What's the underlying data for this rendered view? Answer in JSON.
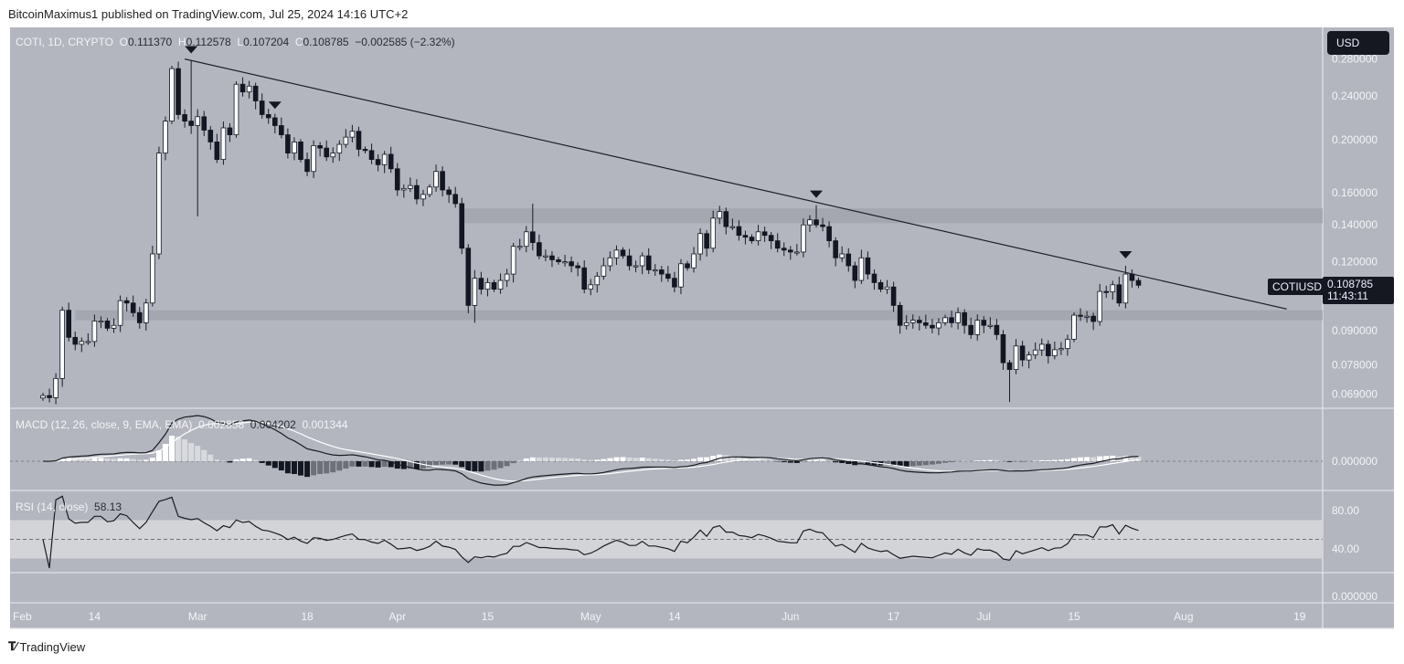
{
  "header": {
    "published": "BitcoinMaximus1 published on TradingView.com, Jul 25, 2024 14:16 UTC+2"
  },
  "legend": {
    "symbol": "COTI, 1D, CRYPTO",
    "o_label": "O",
    "o": "0.111370",
    "h_label": "H",
    "h": "0.112578",
    "l_label": "L",
    "l": "0.107204",
    "c_label": "C",
    "c": "0.108785",
    "change": "−0.002585 (−2.32%)"
  },
  "currency_button": "USD",
  "last_price": {
    "symbol": "COTIUSD",
    "price": "0.108785",
    "countdown": "11:43:11"
  },
  "macd_legend": {
    "title": "MACD (12, 26, close, 9, EMA, EMA)",
    "v1": "0.002858",
    "v2": "0.004202",
    "v3": "0.001344"
  },
  "rsi_legend": {
    "title": "RSI (14, close)",
    "value": "58.13"
  },
  "footer": {
    "brand": "TradingView"
  },
  "colors": {
    "background": "#b3b6bf",
    "up": "#ffffff",
    "down": "#131722",
    "zone": "#a2a5ae",
    "rsi_band": "#d3d4d8"
  },
  "chart_data": {
    "type": "candlestick",
    "symbol": "COTIUSD",
    "interval": "1D",
    "y_scale": "log",
    "first_date": "2024-02-06",
    "closes": [
      0.0686,
      0.068,
      0.0737,
      0.098,
      0.0875,
      0.085,
      0.086,
      0.086,
      0.0937,
      0.0937,
      0.0909,
      0.092,
      0.102,
      0.101,
      0.097,
      0.093,
      0.101,
      0.124,
      0.189,
      0.216,
      0.269,
      0.222,
      0.216,
      0.212,
      0.22,
      0.208,
      0.198,
      0.184,
      0.21,
      0.204,
      0.252,
      0.244,
      0.25,
      0.235,
      0.222,
      0.219,
      0.212,
      0.204,
      0.189,
      0.198,
      0.184,
      0.175,
      0.195,
      0.193,
      0.186,
      0.189,
      0.196,
      0.202,
      0.207,
      0.192,
      0.191,
      0.184,
      0.18,
      0.188,
      0.177,
      0.162,
      0.163,
      0.165,
      0.156,
      0.159,
      0.164,
      0.175,
      0.162,
      0.159,
      0.153,
      0.127,
      0.1,
      0.112,
      0.107,
      0.11,
      0.107,
      0.111,
      0.114,
      0.128,
      0.128,
      0.136,
      0.13,
      0.123,
      0.123,
      0.121,
      0.12,
      0.12,
      0.118,
      0.117,
      0.107,
      0.109,
      0.113,
      0.118,
      0.122,
      0.126,
      0.123,
      0.118,
      0.118,
      0.123,
      0.116,
      0.116,
      0.114,
      0.112,
      0.108,
      0.119,
      0.117,
      0.124,
      0.135,
      0.127,
      0.144,
      0.148,
      0.139,
      0.139,
      0.134,
      0.133,
      0.131,
      0.136,
      0.134,
      0.131,
      0.127,
      0.126,
      0.125,
      0.125,
      0.14,
      0.143,
      0.14,
      0.139,
      0.131,
      0.122,
      0.124,
      0.118,
      0.111,
      0.122,
      0.114,
      0.11,
      0.107,
      0.108,
      0.1,
      0.092,
      0.093,
      0.094,
      0.093,
      0.092,
      0.091,
      0.093,
      0.095,
      0.093,
      0.097,
      0.092,
      0.0885,
      0.094,
      0.092,
      0.092,
      0.0885,
      0.0787,
      0.0765,
      0.0844,
      0.0796,
      0.0813,
      0.083,
      0.085,
      0.081,
      0.0831,
      0.0835,
      0.0868,
      0.096,
      0.0956,
      0.0956,
      0.0935,
      0.106,
      0.1058,
      0.109,
      0.101,
      0.114,
      0.111,
      0.108785
    ],
    "notable_wicks": [
      {
        "date": "2024-02-29",
        "high": 0.278
      },
      {
        "date": "2024-03-01",
        "low": 0.145
      },
      {
        "date": "2024-04-13",
        "low": 0.093
      },
      {
        "date": "2024-04-22",
        "high": 0.153
      },
      {
        "date": "2024-06-05",
        "high": 0.152
      },
      {
        "date": "2024-07-05",
        "low": 0.0668
      },
      {
        "date": "2024-07-23",
        "high": 0.118
      }
    ],
    "price_ticks": [
      "0.280000",
      "0.240000",
      "0.200000",
      "0.160000",
      "0.140000",
      "0.120000",
      "0.090000",
      "0.078000",
      "0.069000"
    ],
    "time_ticks": [
      {
        "label": "Feb",
        "date": "2024-02-01"
      },
      {
        "label": "14",
        "date": "2024-02-14"
      },
      {
        "label": "Mar",
        "date": "2024-03-01"
      },
      {
        "label": "18",
        "date": "2024-03-18"
      },
      {
        "label": "Apr",
        "date": "2024-04-01"
      },
      {
        "label": "15",
        "date": "2024-04-15"
      },
      {
        "label": "May",
        "date": "2024-05-01"
      },
      {
        "label": "14",
        "date": "2024-05-14"
      },
      {
        "label": "Jun",
        "date": "2024-06-01"
      },
      {
        "label": "17",
        "date": "2024-06-17"
      },
      {
        "label": "Jul",
        "date": "2024-07-01"
      },
      {
        "label": "15",
        "date": "2024-07-15"
      },
      {
        "label": "Aug",
        "date": "2024-08-01"
      },
      {
        "label": "19",
        "date": "2024-08-19"
      }
    ],
    "zones": [
      {
        "name": "resistance",
        "from": 0.141,
        "to": 0.15,
        "start": "2024-04-11"
      },
      {
        "name": "support",
        "from": 0.094,
        "to": 0.098,
        "start": "2024-02-11"
      }
    ],
    "trendline": {
      "start": {
        "date": "2024-02-28",
        "price": 0.28
      },
      "end": {
        "date": "2024-08-17",
        "price": 0.0985
      }
    },
    "top_markers": [
      "2024-02-29",
      "2024-03-13",
      "2024-06-05",
      "2024-07-23"
    ],
    "macd": {
      "fast": 12,
      "slow": 26,
      "signal": 9,
      "axis_tick": "0.000000"
    },
    "rsi": {
      "period": 14,
      "axis_ticks": [
        "80.00",
        "40.00"
      ],
      "band": [
        30,
        70
      ],
      "midline": 50
    },
    "extra_pane_tick": "0.000000"
  }
}
